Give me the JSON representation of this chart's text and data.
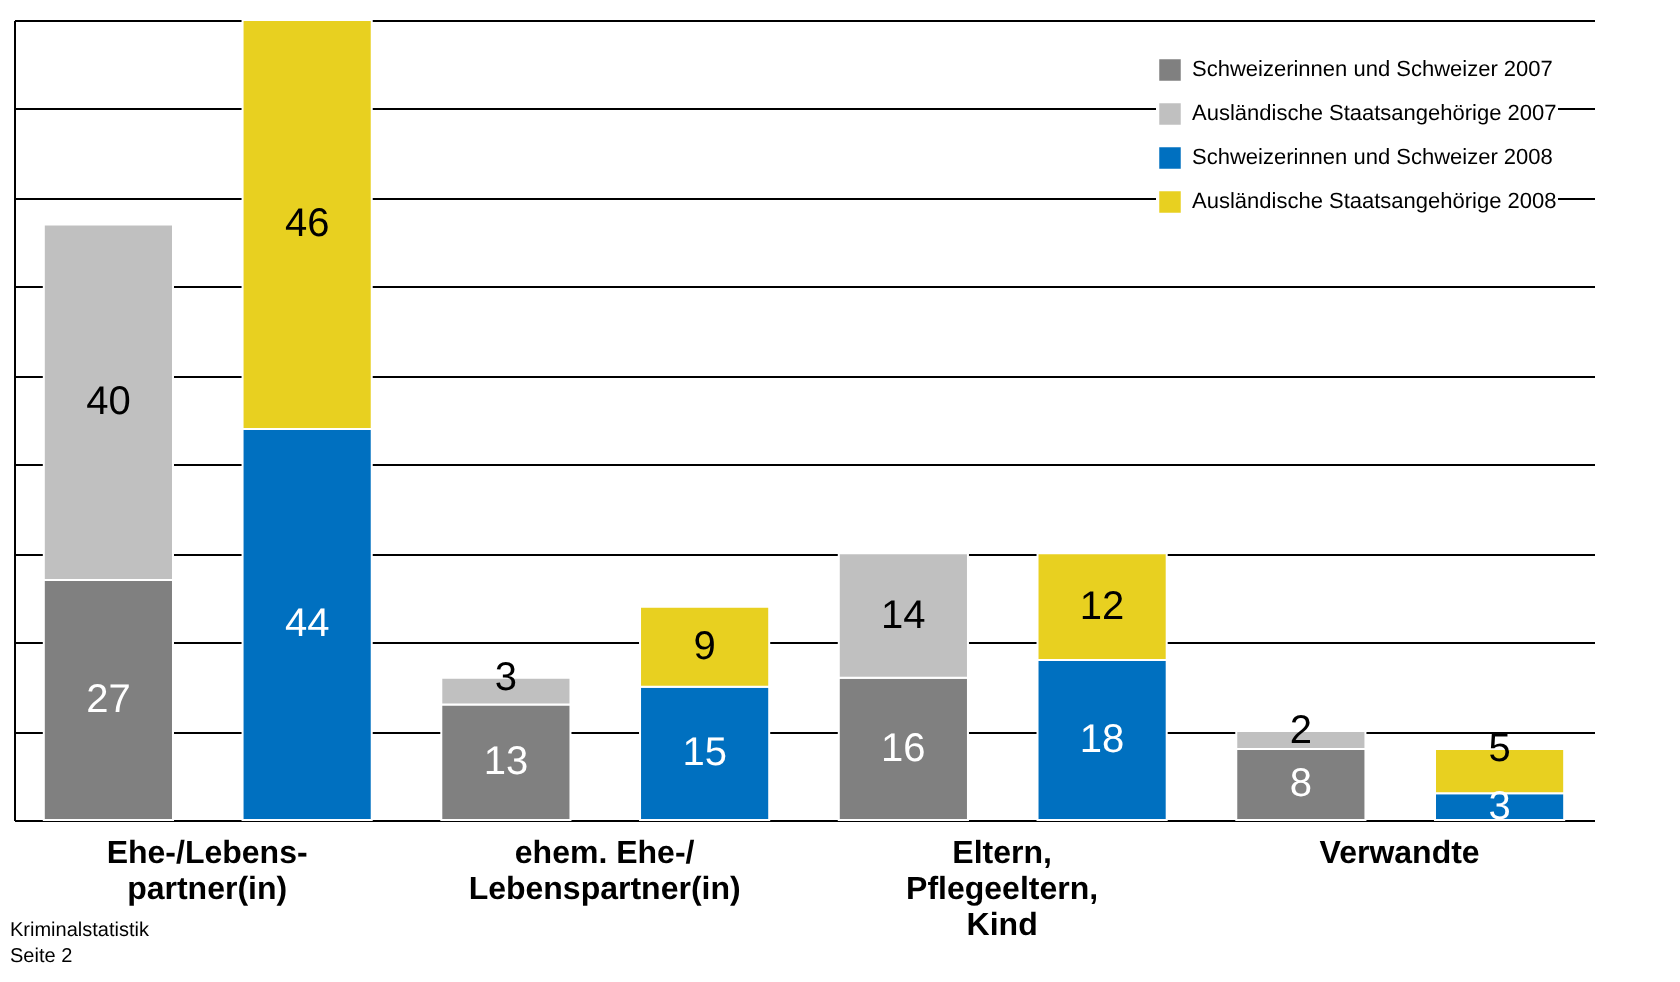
{
  "chart_data": {
    "type": "bar",
    "stacked": true,
    "categories": [
      "Ehe-/Lebens-\npartner(in)",
      null,
      "ehem. Ehe-/\nLebenspartner(in)",
      null,
      "Eltern,\nPflegeeltern,\nKind",
      null,
      "Verwandte",
      null
    ],
    "series": [
      {
        "name": "Schweizerinnen und Schweizer 2007",
        "color": "#808080",
        "values": [
          27,
          null,
          13,
          null,
          16,
          null,
          8,
          null
        ]
      },
      {
        "name": "Ausländische Staatsangehörige 2007",
        "color": "#c0c0c0",
        "values": [
          40,
          null,
          3,
          null,
          14,
          null,
          2,
          null
        ]
      },
      {
        "name": "Schweizerinnen und Schweizer 2008",
        "color": "#0070c0",
        "values": [
          null,
          44,
          null,
          15,
          null,
          18,
          null,
          3
        ]
      },
      {
        "name": "Ausländische Staatsangehörige 2008",
        "color": "#e8d020",
        "values": [
          null,
          46,
          null,
          9,
          null,
          12,
          null,
          5
        ]
      }
    ],
    "ylim": [
      0,
      90
    ],
    "yticks": [
      {
        "value": 0,
        "label": null
      },
      {
        "value": 10,
        "label": null
      },
      {
        "value": 20,
        "label": null
      },
      {
        "value": 30,
        "label": null
      },
      {
        "value": 40,
        "label": null
      },
      {
        "value": 50,
        "label": null
      },
      {
        "value": 60,
        "label": null
      },
      {
        "value": 70,
        "label": null
      },
      {
        "value": 80,
        "label": null
      },
      {
        "value": 90,
        "label": null
      }
    ],
    "grid": "y",
    "tick_labels": "x",
    "legend": "top right",
    "data_labels": true,
    "annotations": [
      "Kriminalstatistik",
      "Seite 2"
    ]
  }
}
